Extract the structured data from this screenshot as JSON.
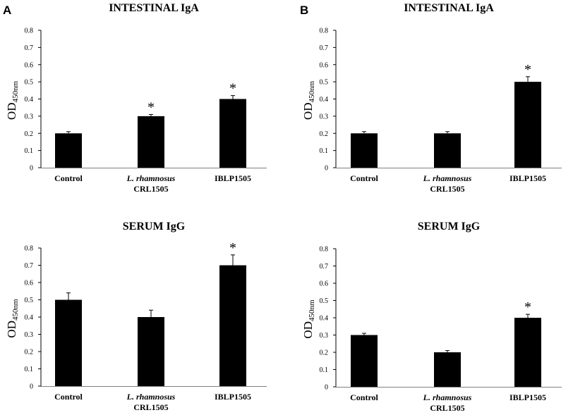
{
  "panels": [
    {
      "letter": "A"
    },
    {
      "letter": "B"
    }
  ],
  "chart_data": [
    {
      "type": "bar",
      "panel": "A",
      "title": "INTESTINAL IgA",
      "ylabel_main": "OD",
      "ylabel_sub": "450nm",
      "ylim": [
        0,
        0.8
      ],
      "ytick_labels": [
        "0",
        "0.1",
        "0.2",
        "0.3",
        "0.4",
        "0.5",
        "0.6",
        "0.7",
        "0.8"
      ],
      "categories": [
        "Control",
        "L. rhamnosus CRL1505",
        "IBLP1505"
      ],
      "category_lines": [
        [
          "Control"
        ],
        [
          "L. rhamnosus",
          "CRL1505"
        ],
        [
          "IBLP1505"
        ]
      ],
      "values": [
        0.2,
        0.3,
        0.4
      ],
      "errors": [
        0.01,
        0.01,
        0.02
      ],
      "significance": [
        "",
        "*",
        "*"
      ],
      "bar_color": "#000000"
    },
    {
      "type": "bar",
      "panel": "B",
      "title": "INTESTINAL IgA",
      "ylabel_main": "OD",
      "ylabel_sub": "450nm",
      "ylim": [
        0,
        0.8
      ],
      "ytick_labels": [
        "0",
        "0.1",
        "0.2",
        "0.3",
        "0.4",
        "0.5",
        "0.6",
        "0.7",
        "0.8"
      ],
      "categories": [
        "Control",
        "L. rhamnosus CRL1505",
        "IBLP1505"
      ],
      "category_lines": [
        [
          "Control"
        ],
        [
          "L. rhamnosus",
          "CRL1505"
        ],
        [
          "IBLP1505"
        ]
      ],
      "values": [
        0.2,
        0.2,
        0.5
      ],
      "errors": [
        0.01,
        0.01,
        0.03
      ],
      "significance": [
        "",
        "",
        "*"
      ],
      "bar_color": "#000000"
    },
    {
      "type": "bar",
      "panel": "A",
      "title": "SERUM IgG",
      "ylabel_main": "OD",
      "ylabel_sub": "450nm",
      "ylim": [
        0,
        0.8
      ],
      "ytick_labels": [
        "0",
        "0.1",
        "0.2",
        "0.3",
        "0.4",
        "0.5",
        "0.6",
        "0.7",
        "0.8"
      ],
      "categories": [
        "Control",
        "L. rhamnosus CRL1505",
        "IBLP1505"
      ],
      "category_lines": [
        [
          "Control"
        ],
        [
          "L. rhamnosus",
          "CRL1505"
        ],
        [
          "IBLP1505"
        ]
      ],
      "values": [
        0.5,
        0.4,
        0.7
      ],
      "errors": [
        0.04,
        0.04,
        0.06
      ],
      "significance": [
        "",
        "",
        "*"
      ],
      "bar_color": "#000000"
    },
    {
      "type": "bar",
      "panel": "B",
      "title": "SERUM IgG",
      "ylabel_main": "OD",
      "ylabel_sub": "450nm",
      "ylim": [
        0,
        0.8
      ],
      "ytick_labels": [
        "0",
        "0.1",
        "0.2",
        "0.3",
        "0.4",
        "0.5",
        "0.6",
        "0.7",
        "0.8"
      ],
      "categories": [
        "Control",
        "L. rhamnosus CRL1505",
        "IBLP1505"
      ],
      "category_lines": [
        [
          "Control"
        ],
        [
          "L. rhamnosus",
          "CRL1505"
        ],
        [
          "IBLP1505"
        ]
      ],
      "values": [
        0.3,
        0.2,
        0.4
      ],
      "errors": [
        0.01,
        0.01,
        0.02
      ],
      "significance": [
        "",
        "",
        "*"
      ],
      "bar_color": "#000000"
    }
  ]
}
